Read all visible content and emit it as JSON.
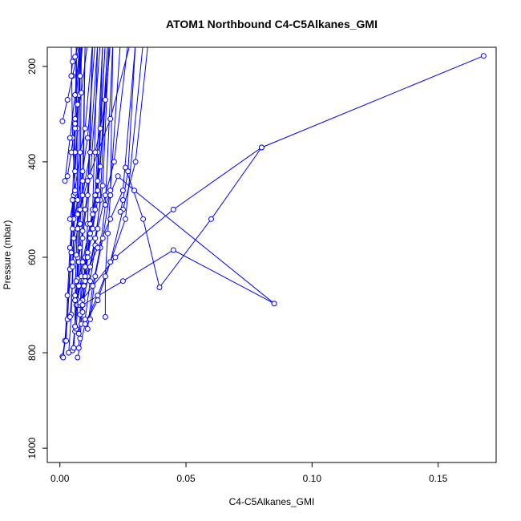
{
  "chart_data": {
    "type": "line",
    "title": "ATOM1 Northbound C4-C5Alkanes_GMI",
    "xlabel": "C4-C5Alkanes_GMI",
    "ylabel": "Pressure (mbar)",
    "xlim": [
      -0.005,
      0.173
    ],
    "ylim": [
      160,
      1030
    ],
    "y_reversed": true,
    "x_ticks": [
      0.0,
      0.05,
      0.1,
      0.15
    ],
    "x_tick_labels": [
      "0.00",
      "0.05",
      "0.10",
      "0.15"
    ],
    "y_ticks": [
      200,
      400,
      600,
      800,
      1000
    ],
    "y_tick_labels": [
      "200",
      "400",
      "600",
      "800",
      "1000"
    ],
    "grid": false,
    "legend": "none",
    "colors": {
      "series": "#0000ff",
      "axis": "#000000",
      "background": "#ffffff"
    },
    "series": [
      {
        "x": [
          0.001,
          0.002,
          0.004,
          0.005,
          0.006,
          0.008,
          0.011,
          0.017,
          0.0245
        ],
        "y": [
          808,
          775,
          625,
          480,
          310,
          150,
          150,
          150,
          150
        ]
      },
      {
        "x": [
          0.0013,
          0.003,
          0.0045,
          0.006,
          0.0075,
          0.0085
        ],
        "y": [
          810,
          730,
          590,
          420,
          260,
          150
        ]
      },
      {
        "x": [
          0.0025,
          0.003,
          0.004,
          0.0055,
          0.007,
          0.008
        ],
        "y": [
          775,
          680,
          580,
          470,
          330,
          150
        ]
      },
      {
        "x": [
          0.0035,
          0.0045,
          0.005,
          0.0055,
          0.006,
          0.0065
        ],
        "y": [
          800,
          720,
          620,
          520,
          380,
          150
        ]
      },
      {
        "x": [
          0.004,
          0.005,
          0.0055,
          0.006,
          0.005,
          0.0045
        ],
        "y": [
          725,
          660,
          560,
          465,
          350,
          150
        ]
      },
      {
        "x": [
          0.005,
          0.006,
          0.007,
          0.008,
          0.009,
          0.01
        ],
        "y": [
          795,
          745,
          645,
          530,
          440,
          150
        ]
      },
      {
        "x": [
          0.0055,
          0.0065,
          0.007,
          0.0075,
          0.008
        ],
        "y": [
          790,
          700,
          600,
          500,
          150
        ]
      },
      {
        "x": [
          0.006,
          0.006,
          0.0065,
          0.007,
          0.0065
        ],
        "y": [
          755,
          690,
          595,
          510,
          150
        ]
      },
      {
        "x": [
          0.0065,
          0.007,
          0.0075,
          0.008,
          0.0085
        ],
        "y": [
          750,
          700,
          610,
          540,
          150
        ]
      },
      {
        "x": [
          0.007,
          0.01,
          0.015,
          0.02,
          0.026,
          0.033
        ],
        "y": [
          810,
          740,
          680,
          610,
          520,
          150
        ]
      },
      {
        "x": [
          0.0075,
          0.008,
          0.0085,
          0.009,
          0.01
        ],
        "y": [
          790,
          720,
          640,
          545,
          150
        ]
      },
      {
        "x": [
          0.008,
          0.009,
          0.01,
          0.011,
          0.013
        ],
        "y": [
          770,
          700,
          620,
          530,
          150
        ]
      },
      {
        "x": [
          0.0085,
          0.0095,
          0.011,
          0.013,
          0.015
        ],
        "y": [
          740,
          660,
          590,
          500,
          150
        ]
      },
      {
        "x": [
          0.009,
          0.01,
          0.012,
          0.014,
          0.017
        ],
        "y": [
          715,
          640,
          560,
          470,
          150
        ]
      },
      {
        "x": [
          0.01,
          0.012,
          0.014,
          0.016,
          0.019
        ],
        "y": [
          730,
          650,
          575,
          480,
          150
        ]
      },
      {
        "x": [
          0.011,
          0.013,
          0.016,
          0.018,
          0.021
        ],
        "y": [
          750,
          660,
          580,
          490,
          150
        ]
      },
      {
        "x": [
          0.012,
          0.014,
          0.017,
          0.02,
          0.024
        ],
        "y": [
          730,
          640,
          560,
          460,
          150
        ]
      },
      {
        "x": [
          0.009,
          0.012,
          0.015,
          0.018,
          0.0215,
          0.027
        ],
        "y": [
          700,
          620,
          540,
          470,
          400,
          150
        ]
      },
      {
        "x": [
          0.008,
          0.011,
          0.014,
          0.017,
          0.0195
        ],
        "y": [
          700,
          640,
          560,
          450,
          150
        ]
      },
      {
        "x": [
          0.006,
          0.009,
          0.012,
          0.015,
          0.018
        ],
        "y": [
          680,
          610,
          530,
          440,
          150
        ]
      },
      {
        "x": [
          0.007,
          0.01,
          0.013,
          0.016,
          0.019
        ],
        "y": [
          690,
          600,
          510,
          410,
          150
        ]
      },
      {
        "x": [
          0.005,
          0.007,
          0.009,
          0.012,
          0.015
        ],
        "y": [
          610,
          540,
          470,
          380,
          150
        ]
      },
      {
        "x": [
          0.004,
          0.006,
          0.008,
          0.01,
          0.013
        ],
        "y": [
          520,
          460,
          380,
          330,
          150
        ]
      },
      {
        "x": [
          0.003,
          0.0045,
          0.006,
          0.0085,
          0.011
        ],
        "y": [
          430,
          380,
          320,
          255,
          150
        ]
      },
      {
        "x": [
          0.002,
          0.004,
          0.006,
          0.008
        ],
        "y": [
          440,
          350,
          260,
          150
        ]
      },
      {
        "x": [
          0.001,
          0.003,
          0.005,
          0.008
        ],
        "y": [
          315,
          270,
          220,
          150
        ]
      },
      {
        "x": [
          0.0045,
          0.005,
          0.006,
          0.0075
        ],
        "y": [
          220,
          190,
          180,
          150
        ]
      },
      {
        "x": [
          0.006,
          0.01,
          0.015,
          0.02,
          0.025,
          0.03
        ],
        "y": [
          690,
          640,
          580,
          520,
          460,
          150
        ]
      },
      {
        "x": [
          0.0055,
          0.008,
          0.011,
          0.015,
          0.02,
          0.028
        ],
        "y": [
          560,
          500,
          440,
          380,
          310,
          150
        ]
      },
      {
        "x": [
          0.005,
          0.007,
          0.009,
          0.011,
          0.014
        ],
        "y": [
          540,
          480,
          420,
          350,
          150
        ]
      },
      {
        "x": [
          0.0065,
          0.008,
          0.01,
          0.012,
          0.016
        ],
        "y": [
          650,
          580,
          500,
          430,
          150
        ]
      },
      {
        "x": [
          0.0075,
          0.009,
          0.011,
          0.014,
          0.018
        ],
        "y": [
          760,
          690,
          600,
          500,
          150
        ]
      },
      {
        "x": [
          0.008,
          0.01,
          0.012,
          0.015,
          0.02
        ],
        "y": [
          700,
          620,
          550,
          460,
          150
        ]
      },
      {
        "x": [
          0.006,
          0.0075,
          0.009,
          0.011,
          0.013
        ],
        "y": [
          745,
          660,
          560,
          470,
          150
        ]
      },
      {
        "x": [
          0.009,
          0.01,
          0.011,
          0.013,
          0.015,
          0.017
        ],
        "y": [
          700,
          650,
          600,
          540,
          480,
          150
        ]
      },
      {
        "x": [
          0.018,
          0.018,
          0.019,
          0.02,
          0.021
        ],
        "y": [
          725,
          640,
          550,
          470,
          150
        ]
      },
      {
        "x": [
          0.01,
          0.015,
          0.02,
          0.025,
          0.03,
          0.035
        ],
        "y": [
          740,
          690,
          610,
          500,
          400,
          150
        ]
      },
      {
        "x": [
          0.008,
          0.022,
          0.045,
          0.08,
          0.168
        ],
        "y": [
          695,
          600,
          500,
          370,
          178
        ]
      },
      {
        "x": [
          0.009,
          0.025,
          0.045,
          0.085
        ],
        "y": [
          700,
          650,
          585,
          697
        ]
      },
      {
        "x": [
          0.026,
          0.033,
          0.0395,
          0.06,
          0.08
        ],
        "y": [
          412,
          520,
          663,
          520,
          370
        ]
      },
      {
        "x": [
          0.018,
          0.023,
          0.0295,
          0.085
        ],
        "y": [
          490,
          430,
          460,
          697
        ]
      },
      {
        "x": [
          0.024,
          0.025,
          0.027,
          0.03
        ],
        "y": [
          505,
          480,
          420,
          150
        ]
      },
      {
        "x": [
          0.014,
          0.016,
          0.018,
          0.02
        ],
        "y": [
          380,
          330,
          270,
          150
        ]
      },
      {
        "x": [
          0.006,
          0.007,
          0.008,
          0.009
        ],
        "y": [
          330,
          280,
          220,
          150
        ]
      }
    ]
  }
}
